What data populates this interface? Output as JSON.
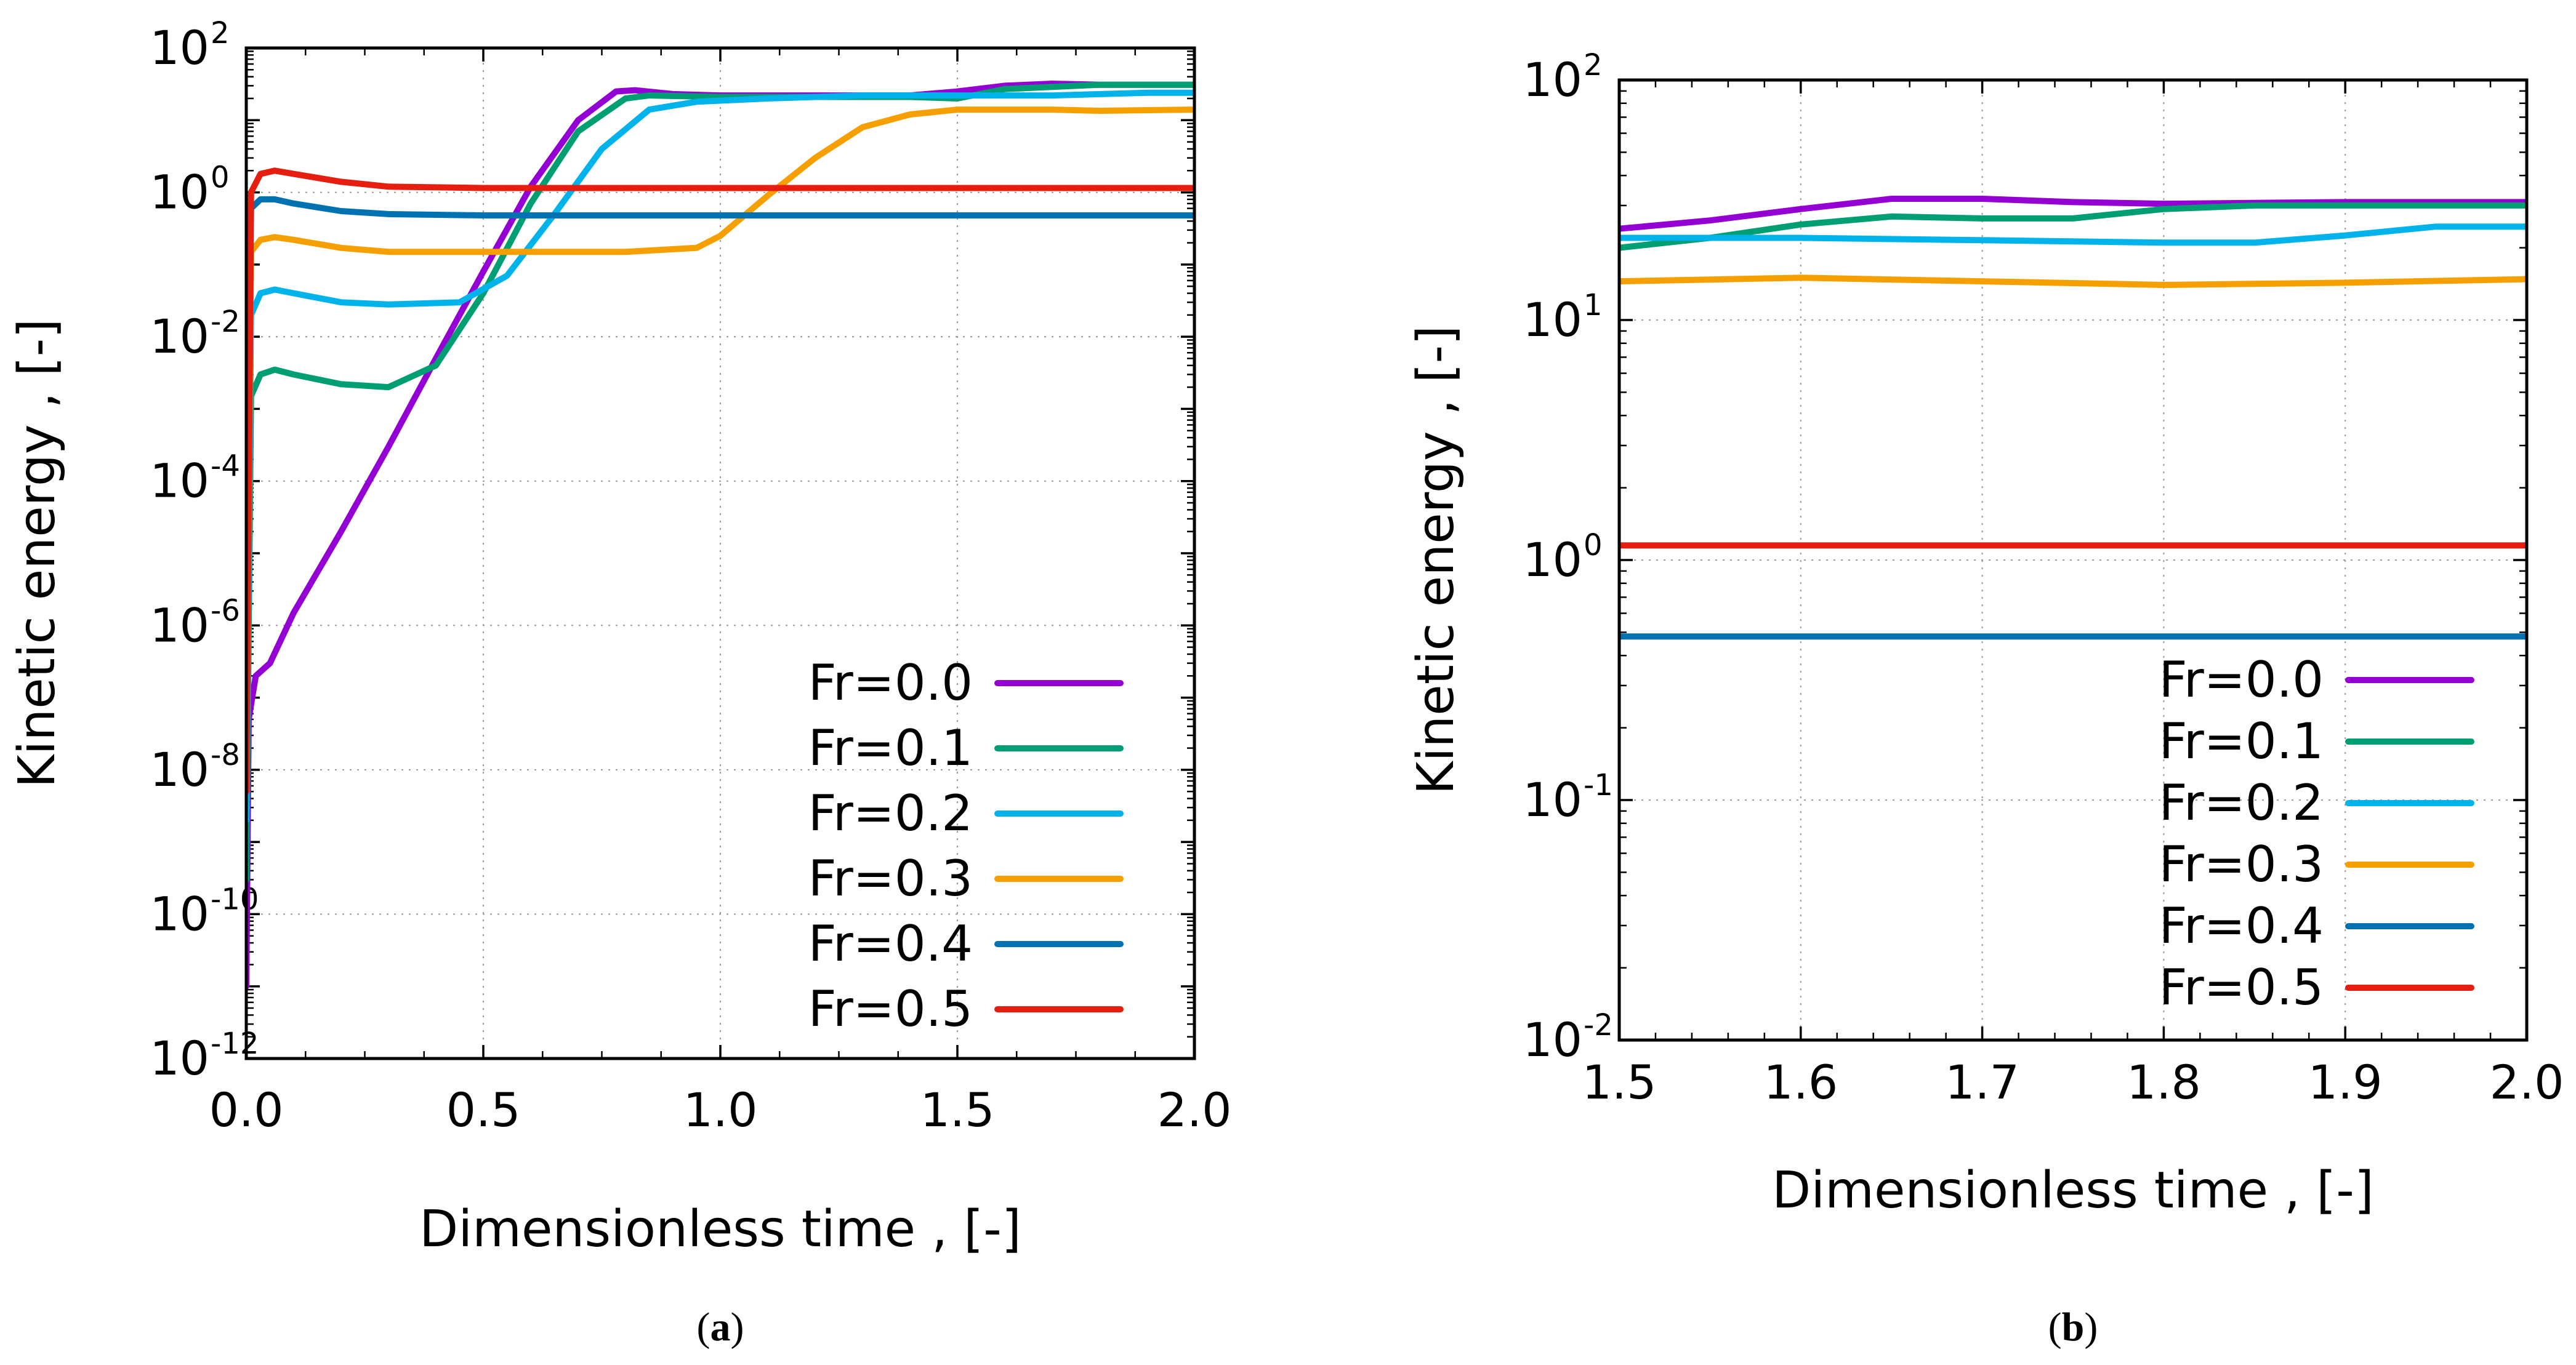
{
  "chart_data": [
    {
      "id": "a",
      "type": "line",
      "caption": "(a)",
      "caption_letter": "a",
      "xlabel": "Dimensionless time , [-]",
      "ylabel": "Kinetic energy , [-]",
      "xlim": [
        0,
        2
      ],
      "ylim": [
        1e-12,
        100
      ],
      "yscale": "log",
      "xticks": [
        "0.0",
        "0.5",
        "1.0",
        "1.5",
        "2.0"
      ],
      "yticks": [
        {
          "base": "10",
          "exp": "-12"
        },
        {
          "base": "10",
          "exp": "-10"
        },
        {
          "base": "10",
          "exp": "-8"
        },
        {
          "base": "10",
          "exp": "-6"
        },
        {
          "base": "10",
          "exp": "-4"
        },
        {
          "base": "10",
          "exp": "-2"
        },
        {
          "base": "10",
          "exp": "0"
        },
        {
          "base": "10",
          "exp": "2"
        }
      ],
      "legend_position": "bottom-right",
      "series": [
        {
          "name": "Fr=0.0",
          "color": "#9400d3",
          "points": [
            [
              0.0,
              1e-11
            ],
            [
              0.005,
              5e-08
            ],
            [
              0.02,
              2e-07
            ],
            [
              0.05,
              3e-07
            ],
            [
              0.1,
              1.5e-06
            ],
            [
              0.2,
              2e-05
            ],
            [
              0.3,
              0.0003
            ],
            [
              0.4,
              0.005
            ],
            [
              0.5,
              0.08
            ],
            [
              0.6,
              1.2
            ],
            [
              0.7,
              10
            ],
            [
              0.78,
              25
            ],
            [
              0.82,
              26
            ],
            [
              0.9,
              23
            ],
            [
              1.0,
              22
            ],
            [
              1.2,
              22
            ],
            [
              1.4,
              22
            ],
            [
              1.5,
              25
            ],
            [
              1.6,
              30
            ],
            [
              1.7,
              32
            ],
            [
              1.8,
              31
            ],
            [
              1.9,
              31
            ],
            [
              2.0,
              31
            ]
          ]
        },
        {
          "name": "Fr=0.1",
          "color": "#009e73",
          "points": [
            [
              0.0,
              3e-10
            ],
            [
              0.01,
              0.0015
            ],
            [
              0.03,
              0.003
            ],
            [
              0.06,
              0.0035
            ],
            [
              0.1,
              0.003
            ],
            [
              0.2,
              0.0022
            ],
            [
              0.3,
              0.002
            ],
            [
              0.4,
              0.004
            ],
            [
              0.5,
              0.04
            ],
            [
              0.6,
              0.7
            ],
            [
              0.7,
              7
            ],
            [
              0.8,
              20
            ],
            [
              0.85,
              22
            ],
            [
              1.0,
              21
            ],
            [
              1.2,
              21
            ],
            [
              1.4,
              21
            ],
            [
              1.5,
              20
            ],
            [
              1.6,
              27
            ],
            [
              1.8,
              31
            ],
            [
              2.0,
              31
            ]
          ]
        },
        {
          "name": "Fr=0.2",
          "color": "#00b4eb",
          "points": [
            [
              0.0,
              2e-09
            ],
            [
              0.01,
              0.02
            ],
            [
              0.03,
              0.04
            ],
            [
              0.06,
              0.045
            ],
            [
              0.1,
              0.04
            ],
            [
              0.2,
              0.03
            ],
            [
              0.3,
              0.028
            ],
            [
              0.45,
              0.03
            ],
            [
              0.55,
              0.07
            ],
            [
              0.65,
              0.5
            ],
            [
              0.75,
              4
            ],
            [
              0.85,
              14
            ],
            [
              0.95,
              18
            ],
            [
              1.1,
              20
            ],
            [
              1.3,
              22
            ],
            [
              1.5,
              22
            ],
            [
              1.7,
              22
            ],
            [
              1.9,
              24
            ],
            [
              2.0,
              24
            ]
          ]
        },
        {
          "name": "Fr=0.3",
          "color": "#f5a000",
          "points": [
            [
              0.0,
              5e-09
            ],
            [
              0.01,
              0.15
            ],
            [
              0.03,
              0.22
            ],
            [
              0.06,
              0.24
            ],
            [
              0.1,
              0.22
            ],
            [
              0.2,
              0.17
            ],
            [
              0.3,
              0.15
            ],
            [
              0.5,
              0.15
            ],
            [
              0.8,
              0.15
            ],
            [
              0.95,
              0.17
            ],
            [
              1.0,
              0.25
            ],
            [
              1.1,
              0.9
            ],
            [
              1.2,
              3
            ],
            [
              1.3,
              8
            ],
            [
              1.4,
              12
            ],
            [
              1.5,
              14
            ],
            [
              1.7,
              14
            ],
            [
              1.8,
              13.5
            ],
            [
              2.0,
              14
            ]
          ]
        },
        {
          "name": "Fr=0.4",
          "color": "#0072b2",
          "points": [
            [
              0.0,
              5e-09
            ],
            [
              0.01,
              0.6
            ],
            [
              0.03,
              0.8
            ],
            [
              0.06,
              0.8
            ],
            [
              0.1,
              0.7
            ],
            [
              0.2,
              0.55
            ],
            [
              0.3,
              0.5
            ],
            [
              0.5,
              0.48
            ],
            [
              1.0,
              0.48
            ],
            [
              2.0,
              0.48
            ]
          ]
        },
        {
          "name": "Fr=0.5",
          "color": "#e51e10",
          "points": [
            [
              0.0,
              5e-09
            ],
            [
              0.01,
              1.0
            ],
            [
              0.03,
              1.8
            ],
            [
              0.06,
              2.0
            ],
            [
              0.1,
              1.8
            ],
            [
              0.2,
              1.4
            ],
            [
              0.3,
              1.2
            ],
            [
              0.5,
              1.15
            ],
            [
              1.0,
              1.15
            ],
            [
              2.0,
              1.15
            ]
          ]
        }
      ]
    },
    {
      "id": "b",
      "type": "line",
      "caption": "(b)",
      "caption_letter": "b",
      "xlabel": "Dimensionless time , [-]",
      "ylabel": "Kinetic energy , [-]",
      "xlim": [
        1.5,
        2
      ],
      "ylim": [
        0.01,
        100
      ],
      "yscale": "log",
      "xticks": [
        "1.5",
        "1.6",
        "1.7",
        "1.8",
        "1.9",
        "2.0"
      ],
      "yticks": [
        {
          "base": "10",
          "exp": "-2"
        },
        {
          "base": "10",
          "exp": "-1"
        },
        {
          "base": "10",
          "exp": "0"
        },
        {
          "base": "10",
          "exp": "1"
        },
        {
          "base": "10",
          "exp": "2"
        }
      ],
      "legend_position": "bottom-right",
      "series": [
        {
          "name": "Fr=0.0",
          "color": "#9400d3",
          "points": [
            [
              1.5,
              24
            ],
            [
              1.55,
              26
            ],
            [
              1.6,
              29
            ],
            [
              1.65,
              32
            ],
            [
              1.7,
              32
            ],
            [
              1.75,
              31
            ],
            [
              1.8,
              30.5
            ],
            [
              1.9,
              31
            ],
            [
              2.0,
              31
            ]
          ]
        },
        {
          "name": "Fr=0.1",
          "color": "#009e73",
          "points": [
            [
              1.5,
              20
            ],
            [
              1.55,
              22
            ],
            [
              1.6,
              25
            ],
            [
              1.65,
              27
            ],
            [
              1.7,
              26.5
            ],
            [
              1.75,
              26.5
            ],
            [
              1.8,
              29
            ],
            [
              1.85,
              30
            ],
            [
              1.9,
              30
            ],
            [
              2.0,
              30
            ]
          ]
        },
        {
          "name": "Fr=0.2",
          "color": "#00b4eb",
          "points": [
            [
              1.5,
              22
            ],
            [
              1.6,
              22
            ],
            [
              1.7,
              21.5
            ],
            [
              1.8,
              21
            ],
            [
              1.85,
              21
            ],
            [
              1.9,
              22.5
            ],
            [
              1.95,
              24.5
            ],
            [
              2.0,
              24.5
            ]
          ]
        },
        {
          "name": "Fr=0.3",
          "color": "#f5a000",
          "points": [
            [
              1.5,
              14.5
            ],
            [
              1.6,
              15
            ],
            [
              1.7,
              14.5
            ],
            [
              1.8,
              14
            ],
            [
              1.9,
              14.3
            ],
            [
              2.0,
              14.8
            ]
          ]
        },
        {
          "name": "Fr=0.4",
          "color": "#0072b2",
          "points": [
            [
              1.5,
              0.48
            ],
            [
              2.0,
              0.48
            ]
          ]
        },
        {
          "name": "Fr=0.5",
          "color": "#e51e10",
          "points": [
            [
              1.5,
              1.15
            ],
            [
              2.0,
              1.15
            ]
          ]
        }
      ]
    }
  ]
}
